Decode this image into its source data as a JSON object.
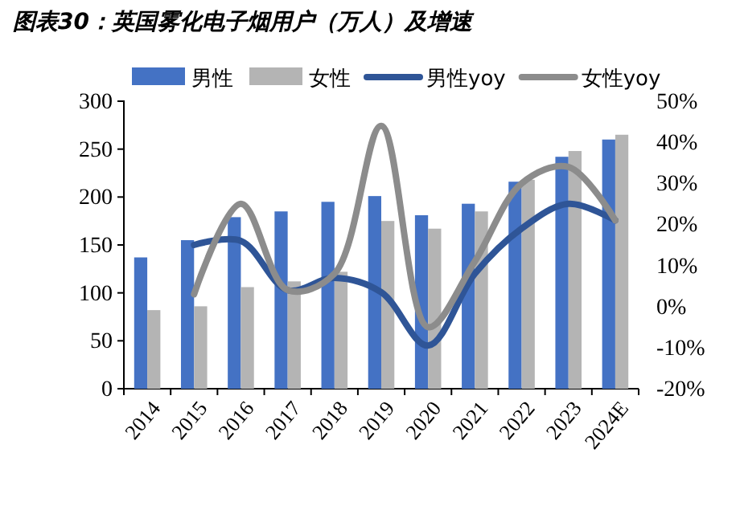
{
  "chart_data": {
    "type": "bar",
    "title": "图表30：英国雾化电子烟用户（万人）及增速",
    "categories": [
      "2014",
      "2015",
      "2016",
      "2017",
      "2018",
      "2019",
      "2020",
      "2021",
      "2022",
      "2023",
      "2024E"
    ],
    "series": [
      {
        "name": "男性",
        "color": "#4472c4",
        "values": [
          137,
          155,
          179,
          185,
          195,
          201,
          181,
          193,
          216,
          242,
          260
        ]
      },
      {
        "name": "女性",
        "color": "#b4b4b4",
        "values": [
          82,
          86,
          106,
          112,
          122,
          175,
          167,
          185,
          218,
          248,
          265
        ]
      },
      {
        "name": "男性yoy",
        "type": "line",
        "axis": "y2",
        "color": "#2f5597",
        "values": [
          null,
          15,
          16,
          4,
          7,
          3.5,
          -9.5,
          8,
          19,
          25,
          21
        ]
      },
      {
        "name": "女性yoy",
        "type": "line",
        "axis": "y2",
        "color": "#8c8c8c",
        "values": [
          null,
          3,
          25,
          4,
          8,
          44,
          -5,
          11,
          30,
          34,
          21
        ]
      }
    ],
    "ylim": [
      0,
      300
    ],
    "yticks": [
      0,
      50,
      100,
      150,
      200,
      250,
      300
    ],
    "y2lim": [
      -20,
      50
    ],
    "y2ticks": [
      {
        "value": -20,
        "label": "-20%"
      },
      {
        "value": -10,
        "label": "-10%"
      },
      {
        "value": 0,
        "label": "0%"
      },
      {
        "value": 10,
        "label": "10%"
      },
      {
        "value": 20,
        "label": "20%"
      },
      {
        "value": 30,
        "label": "30%"
      },
      {
        "value": 40,
        "label": "40%"
      },
      {
        "value": 50,
        "label": "50%"
      }
    ],
    "legend": "top",
    "marker": "none",
    "line_style": "solid"
  }
}
